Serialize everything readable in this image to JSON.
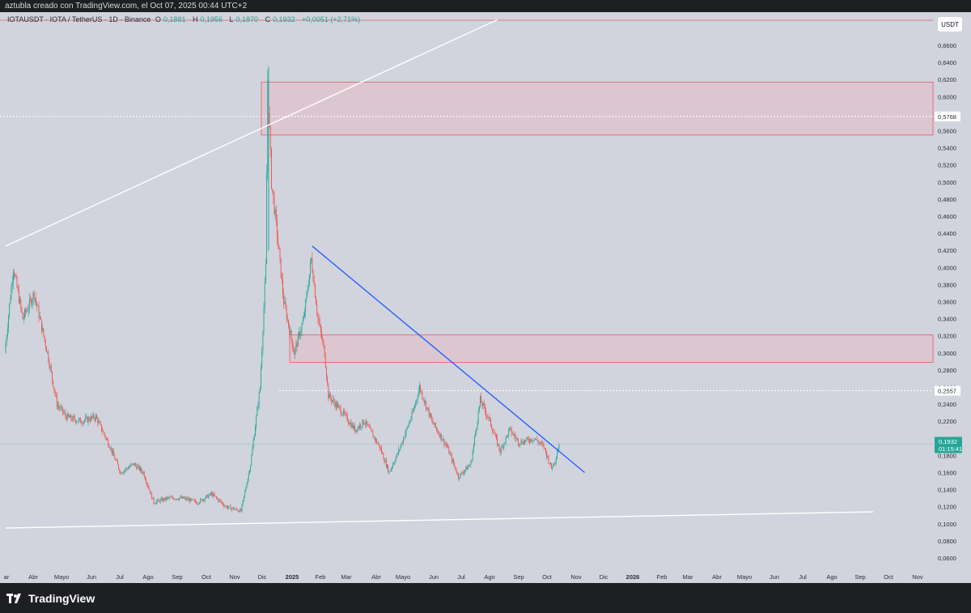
{
  "credit": "aztubla creado con TradingView.com, el Oct 07, 2025 00:44 UTC+2",
  "legend": {
    "symbol": "IOTAUSDT · IOTA / TetherUS · 1D · Binance",
    "open_label": "O",
    "open": "0,1881",
    "high_label": "H",
    "high": "0,1956",
    "low_label": "L",
    "low": "0,1870",
    "close_label": "C",
    "close": "0,1932",
    "change": "+0,0051 (+2,71%)"
  },
  "currency_button": "USDT",
  "brand": "TradingView",
  "colors": {
    "background": "#d1d4dc",
    "up": "#26a69a",
    "down": "#ef5350",
    "zone_fill": "#e8b9c0",
    "zone_border": "#e05a6a",
    "trendline_blue": "#2962ff",
    "trendline_white": "#ffffff",
    "price_badge": "#26a69a"
  },
  "chart_data": {
    "type": "candlestick",
    "symbol": "IOTAUSDT",
    "interval": "1D",
    "exchange": "Binance",
    "y_axis": {
      "ticks": [
        "0,6600",
        "0,6400",
        "0,6200",
        "0,6000",
        "0,5800",
        "0,5600",
        "0,5400",
        "0,5200",
        "0,5000",
        "0,4800",
        "0,4600",
        "0,4400",
        "0,4200",
        "0,4000",
        "0,3800",
        "0,3600",
        "0,3400",
        "0,3200",
        "0,3000",
        "0,2800",
        "0,2600",
        "0,2400",
        "0,2200",
        "0,2000",
        "0,1800",
        "0,1600",
        "0,1400",
        "0,1200",
        "0,1000",
        "0,0800",
        "0,0600"
      ],
      "range": [
        0.06,
        0.66
      ]
    },
    "x_axis": {
      "ticks": [
        "ar",
        "Abr",
        "Mayo",
        "Jun",
        "Jul",
        "Ago",
        "Sep",
        "Oct",
        "Nov",
        "Dic",
        "2025",
        "Feb",
        "Mar",
        "Abr",
        "Mayo",
        "Jun",
        "Jul",
        "Ago",
        "Sep",
        "Oct",
        "Nov",
        "Dic",
        "2026",
        "Feb",
        "Mar",
        "Abr",
        "Mayo",
        "Jun",
        "Jul",
        "Ago",
        "Sep",
        "Oct",
        "Nov"
      ],
      "bold_ticks": [
        "2025",
        "2026"
      ]
    },
    "price_path": [
      [
        "2024-03-01",
        0.3
      ],
      [
        "2024-03-10",
        0.4
      ],
      [
        "2024-03-20",
        0.34
      ],
      [
        "2024-04-01",
        0.37
      ],
      [
        "2024-04-15",
        0.3
      ],
      [
        "2024-04-25",
        0.24
      ],
      [
        "2024-05-05",
        0.225
      ],
      [
        "2024-05-20",
        0.22
      ],
      [
        "2024-06-05",
        0.225
      ],
      [
        "2024-06-20",
        0.19
      ],
      [
        "2024-07-01",
        0.16
      ],
      [
        "2024-07-15",
        0.17
      ],
      [
        "2024-07-25",
        0.16
      ],
      [
        "2024-08-05",
        0.125
      ],
      [
        "2024-08-20",
        0.13
      ],
      [
        "2024-09-05",
        0.13
      ],
      [
        "2024-09-20",
        0.125
      ],
      [
        "2024-10-05",
        0.135
      ],
      [
        "2024-10-20",
        0.12
      ],
      [
        "2024-11-05",
        0.115
      ],
      [
        "2024-11-15",
        0.17
      ],
      [
        "2024-11-25",
        0.26
      ],
      [
        "2024-12-01",
        0.4
      ],
      [
        "2024-12-03",
        0.62
      ],
      [
        "2024-12-07",
        0.5
      ],
      [
        "2024-12-12",
        0.45
      ],
      [
        "2024-12-20",
        0.36
      ],
      [
        "2024-12-31",
        0.3
      ],
      [
        "2025-01-10",
        0.34
      ],
      [
        "2025-01-18",
        0.41
      ],
      [
        "2025-01-25",
        0.34
      ],
      [
        "2025-02-01",
        0.3
      ],
      [
        "2025-02-05",
        0.25
      ],
      [
        "2025-02-20",
        0.23
      ],
      [
        "2025-03-05",
        0.21
      ],
      [
        "2025-03-15",
        0.22
      ],
      [
        "2025-03-31",
        0.19
      ],
      [
        "2025-04-10",
        0.16
      ],
      [
        "2025-04-20",
        0.185
      ],
      [
        "2025-05-05",
        0.23
      ],
      [
        "2025-05-12",
        0.26
      ],
      [
        "2025-05-25",
        0.22
      ],
      [
        "2025-06-10",
        0.19
      ],
      [
        "2025-06-22",
        0.155
      ],
      [
        "2025-07-05",
        0.17
      ],
      [
        "2025-07-15",
        0.245
      ],
      [
        "2025-07-25",
        0.22
      ],
      [
        "2025-08-05",
        0.185
      ],
      [
        "2025-08-15",
        0.21
      ],
      [
        "2025-08-25",
        0.195
      ],
      [
        "2025-09-10",
        0.2
      ],
      [
        "2025-09-20",
        0.19
      ],
      [
        "2025-09-28",
        0.165
      ],
      [
        "2025-10-02",
        0.175
      ],
      [
        "2025-10-06",
        0.1932
      ]
    ],
    "last_price": "0,1932",
    "countdown": "01:15:41",
    "horizontal_markers": [
      {
        "label": "0,5768",
        "value": 0.5768,
        "style": "dotted"
      },
      {
        "label": "0,2557",
        "value": 0.2557,
        "style": "dotted"
      }
    ],
    "zones": [
      {
        "from": 0.555,
        "to": 0.617
      },
      {
        "from": 0.289,
        "to": 0.321
      }
    ],
    "trendlines": [
      {
        "color": "blue",
        "from": [
          "2025-01-18",
          0.425
        ],
        "to": [
          "2025-11-01",
          0.16
        ]
      },
      {
        "color": "white",
        "from": [
          "2024-03-01",
          0.095
        ],
        "to": [
          "2026-09-01",
          0.114
        ]
      },
      {
        "color": "white",
        "from": [
          "2024-03-01",
          0.425
        ],
        "to": [
          "2025-08-01",
          0.69
        ]
      }
    ],
    "grid": false,
    "legend_position": "top-left"
  }
}
